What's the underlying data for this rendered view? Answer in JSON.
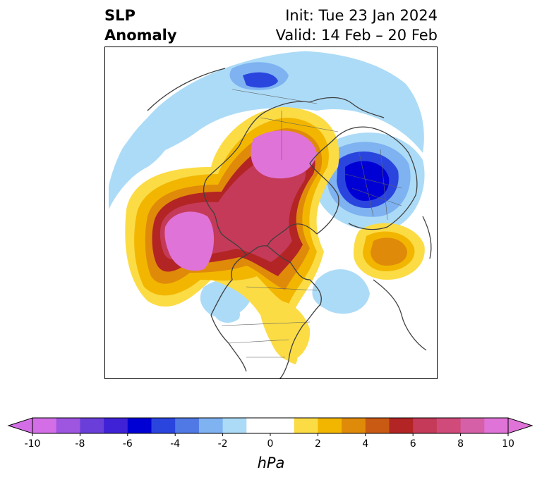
{
  "header": {
    "title_line1": "SLP",
    "title_line2": "Anomaly",
    "init": "Init: Tue 23 Jan 2024",
    "valid": "Valid: 14 Feb – 20 Feb"
  },
  "colorbar": {
    "units": "hPa",
    "ticks": [
      "-10",
      "-8",
      "-6",
      "-4",
      "-2",
      "0",
      "2",
      "4",
      "6",
      "8",
      "10"
    ],
    "colors": [
      "#d36ee6",
      "#9e55e0",
      "#6a3fd9",
      "#3f22d6",
      "#0000d4",
      "#2a45de",
      "#5079e6",
      "#7eb2f1",
      "#acdbf7",
      "#ffffff",
      "#ffffff",
      "#fbdc45",
      "#f2b600",
      "#e08a0a",
      "#c95a14",
      "#b32424",
      "#c43a58",
      "#d04a7a",
      "#d660a8",
      "#e073d8"
    ]
  }
}
